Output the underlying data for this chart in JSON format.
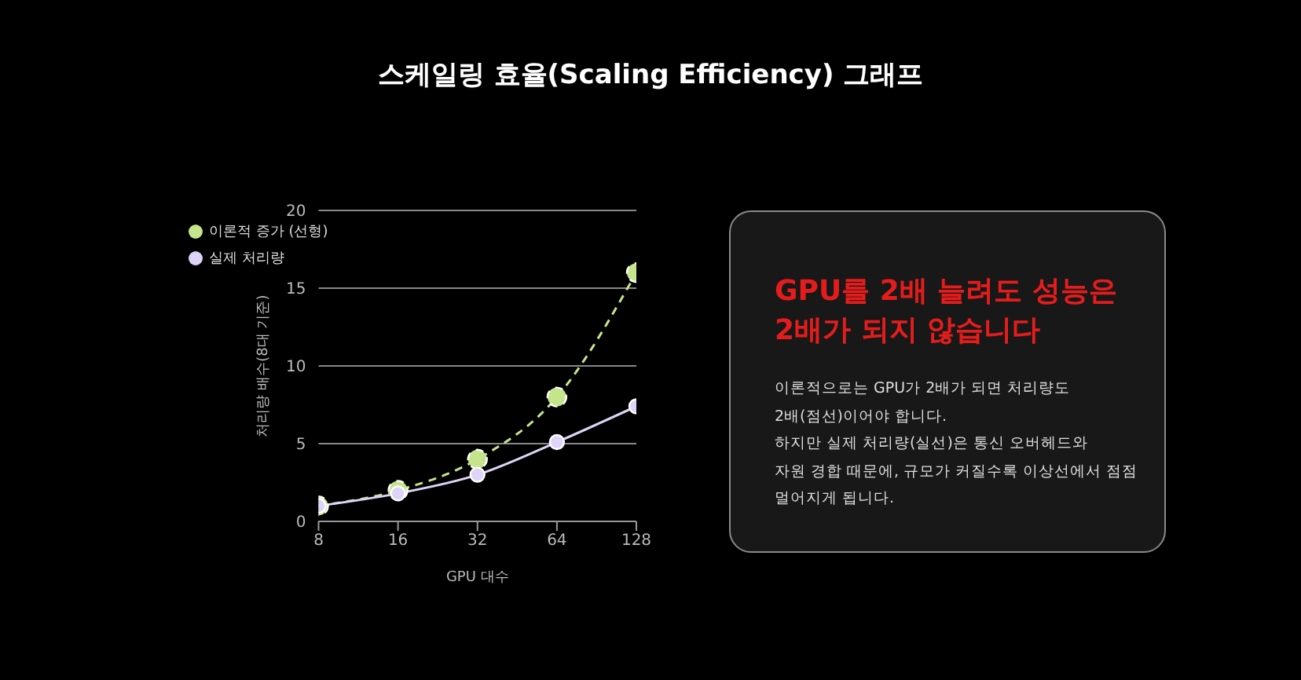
{
  "chart_data": [
    {
      "type": "line",
      "title": "스케일링 효율(Scaling Efficiency) 그래프",
      "xlabel": "GPU 대수",
      "ylabel": "처리량 배수(8대 기준)",
      "x": [
        8,
        16,
        32,
        64,
        128
      ],
      "log": "x",
      "xlim": [
        8,
        128
      ],
      "xticks": [
        8,
        16,
        32,
        64,
        128
      ],
      "ylim": [
        0,
        20
      ],
      "yticks": [
        0,
        5,
        10,
        15,
        20
      ],
      "grid": "y",
      "legend": "top left",
      "marker": "circle",
      "series": [
        {
          "name": "이론적 증가 (선형)",
          "color": "#c5e48c",
          "values": [
            1,
            2,
            4,
            8,
            16
          ],
          "line_style": "dashed"
        },
        {
          "name": "실제 처리량",
          "color": "#ddd4f7",
          "values": [
            1,
            1.8,
            3,
            5.1,
            7.4
          ],
          "line_style": "solid"
        }
      ]
    },
    {
      "type": "other",
      "title": "GPU를 2배 늘려도 성능은 2배가 되지 않습니다",
      "annotations": [
        "이론적으로는 GPU가 2배가 되면 처리량도",
        "2배(점선)이어야 합니다.",
        "하지만 실제 처리량(실선)은 통신 오버헤드와",
        "자원 경합 때문에, 규모가 커질수록 이상선에서 점점",
        "멀어지게 됩니다."
      ]
    }
  ]
}
